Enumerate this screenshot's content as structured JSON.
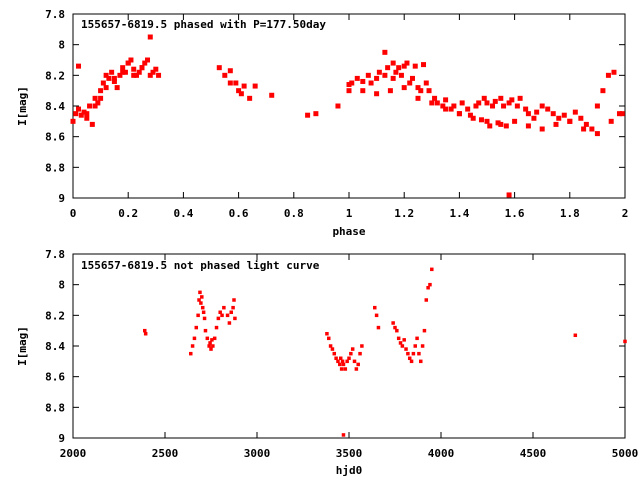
{
  "chart_data": [
    {
      "type": "scatter",
      "title": "155657-6819.5 phased with P=177.50day",
      "xlabel": "phase",
      "ylabel": "I[mag]",
      "xlim": [
        0,
        2
      ],
      "ylim": [
        7.8,
        9
      ],
      "y_inverted": true,
      "xticks": [
        "0",
        "0.2",
        "0.4",
        "0.6",
        "0.8",
        "1",
        "1.2",
        "1.4",
        "1.6",
        "1.8",
        "2"
      ],
      "yticks": [
        "7.8",
        "8",
        "8.2",
        "8.4",
        "8.6",
        "8.8",
        "9"
      ],
      "marker_color": "#ff0000",
      "grid": false,
      "series": [
        {
          "x": [
            0.0,
            0.01,
            0.02,
            0.03,
            0.04,
            0.05,
            0.06,
            0.07,
            0.08,
            0.09,
            0.1,
            0.11,
            0.12,
            0.13,
            0.14,
            0.15,
            0.16,
            0.17,
            0.18,
            0.19,
            0.2,
            0.21,
            0.22,
            0.23,
            0.24,
            0.25,
            0.26,
            0.27,
            0.28,
            0.29,
            0.3,
            0.31,
            0.02,
            0.05,
            0.08,
            0.1,
            0.12,
            0.15,
            0.18,
            0.2,
            0.22,
            0.25,
            0.28,
            0.53,
            0.55,
            0.57,
            0.59,
            0.6,
            0.62,
            0.64,
            0.66,
            0.57,
            0.61,
            0.72,
            0.85,
            0.88,
            0.96,
            1.0,
            1.01,
            1.03,
            1.05,
            1.07,
            1.08,
            1.1,
            1.11,
            1.13,
            1.14,
            1.16,
            1.17,
            1.19,
            1.2,
            1.22,
            1.23,
            1.25,
            1.26,
            1.28,
            1.29,
            1.31,
            1.32,
            1.34,
            1.35,
            1.37,
            1.38,
            1.4,
            1.41,
            1.43,
            1.44,
            1.46,
            1.47,
            1.49,
            1.5,
            1.52,
            1.53,
            1.55,
            1.56,
            1.58,
            1.59,
            1.61,
            1.62,
            1.64,
            1.65,
            1.67,
            1.68,
            1.7,
            1.72,
            1.74,
            1.76,
            1.78,
            1.8,
            1.82,
            1.84,
            1.86,
            1.88,
            1.9,
            1.92,
            1.94,
            1.96,
            1.98,
            1.0,
            1.05,
            1.1,
            1.15,
            1.2,
            1.25,
            1.3,
            1.35,
            1.4,
            1.45,
            1.5,
            1.55,
            1.6,
            1.65,
            1.7,
            1.75,
            1.8,
            1.85,
            1.9,
            1.95,
            1.99,
            1.13,
            1.16,
            1.18,
            1.21,
            1.24,
            1.27,
            1.48,
            1.51,
            1.54,
            1.57,
            1.58
          ],
          "y": [
            8.5,
            8.45,
            8.42,
            8.46,
            8.44,
            8.48,
            8.4,
            8.52,
            8.35,
            8.38,
            8.3,
            8.25,
            8.2,
            8.22,
            8.18,
            8.24,
            8.28,
            8.2,
            8.15,
            8.18,
            8.12,
            8.1,
            8.16,
            8.2,
            8.18,
            8.15,
            8.12,
            8.1,
            8.2,
            8.18,
            8.16,
            8.2,
            8.14,
            8.45,
            8.4,
            8.35,
            8.28,
            8.22,
            8.18,
            8.12,
            8.2,
            8.15,
            7.95,
            8.15,
            8.2,
            8.17,
            8.25,
            8.3,
            8.27,
            8.35,
            8.27,
            8.25,
            8.32,
            8.33,
            8.46,
            8.45,
            8.4,
            8.3,
            8.25,
            8.22,
            8.24,
            8.2,
            8.25,
            8.22,
            8.18,
            8.2,
            8.15,
            8.22,
            8.18,
            8.2,
            8.14,
            8.25,
            8.22,
            8.28,
            8.3,
            8.25,
            8.3,
            8.35,
            8.38,
            8.4,
            8.36,
            8.42,
            8.4,
            8.45,
            8.38,
            8.42,
            8.46,
            8.4,
            8.38,
            8.35,
            8.38,
            8.4,
            8.37,
            8.35,
            8.4,
            8.38,
            8.36,
            8.4,
            8.35,
            8.42,
            8.45,
            8.48,
            8.44,
            8.4,
            8.42,
            8.45,
            8.48,
            8.46,
            8.5,
            8.44,
            8.48,
            8.52,
            8.55,
            8.4,
            8.3,
            8.2,
            8.18,
            8.45,
            8.26,
            8.3,
            8.32,
            8.3,
            8.28,
            8.35,
            8.38,
            8.42,
            8.45,
            8.48,
            8.5,
            8.52,
            8.5,
            8.53,
            8.55,
            8.52,
            8.5,
            8.55,
            8.58,
            8.5,
            8.45,
            8.05,
            8.12,
            8.15,
            8.12,
            8.14,
            8.13,
            8.49,
            8.53,
            8.51,
            8.53,
            8.98
          ]
        }
      ]
    },
    {
      "type": "scatter",
      "title": "155657-6819.5 not phased light curve",
      "xlabel": "hjd0",
      "ylabel": "I[mag]",
      "xlim": [
        2000,
        5000
      ],
      "ylim": [
        7.8,
        9
      ],
      "y_inverted": true,
      "xticks": [
        "2000",
        "2500",
        "3000",
        "3500",
        "4000",
        "4500",
        "5000"
      ],
      "yticks": [
        "7.8",
        "8",
        "8.2",
        "8.4",
        "8.6",
        "8.8",
        "9"
      ],
      "marker_color": "#ff0000",
      "grid": false,
      "series": [
        {
          "x": [
            2390,
            2395,
            2640,
            2650,
            2660,
            2670,
            2680,
            2685,
            2690,
            2695,
            2700,
            2705,
            2710,
            2715,
            2720,
            2730,
            2740,
            2745,
            2750,
            2755,
            2760,
            2770,
            2780,
            2790,
            2800,
            2810,
            2820,
            2840,
            2850,
            2860,
            2870,
            2875,
            2880,
            3380,
            3390,
            3400,
            3410,
            3420,
            3430,
            3440,
            3450,
            3455,
            3460,
            3465,
            3470,
            3480,
            3490,
            3500,
            3510,
            3520,
            3530,
            3540,
            3550,
            3560,
            3570,
            3640,
            3650,
            3660,
            3740,
            3750,
            3760,
            3770,
            3780,
            3790,
            3800,
            3810,
            3820,
            3830,
            3840,
            3850,
            3860,
            3870,
            3880,
            3890,
            3900,
            3910,
            3920,
            3930,
            3940,
            3950,
            4730,
            5000,
            3470
          ],
          "y": [
            8.3,
            8.32,
            8.45,
            8.4,
            8.35,
            8.28,
            8.2,
            8.1,
            8.05,
            8.12,
            8.08,
            8.15,
            8.18,
            8.22,
            8.3,
            8.35,
            8.4,
            8.38,
            8.42,
            8.36,
            8.4,
            8.35,
            8.28,
            8.22,
            8.18,
            8.2,
            8.15,
            8.2,
            8.25,
            8.18,
            8.15,
            8.1,
            8.22,
            8.32,
            8.35,
            8.4,
            8.42,
            8.45,
            8.48,
            8.5,
            8.52,
            8.48,
            8.55,
            8.5,
            8.52,
            8.55,
            8.5,
            8.48,
            8.45,
            8.42,
            8.5,
            8.55,
            8.52,
            8.45,
            8.4,
            8.15,
            8.2,
            8.28,
            8.25,
            8.28,
            8.3,
            8.35,
            8.38,
            8.4,
            8.36,
            8.42,
            8.45,
            8.48,
            8.5,
            8.45,
            8.4,
            8.35,
            8.45,
            8.5,
            8.4,
            8.3,
            8.1,
            8.02,
            8.0,
            7.9,
            8.33,
            8.37,
            8.98
          ]
        }
      ]
    }
  ]
}
